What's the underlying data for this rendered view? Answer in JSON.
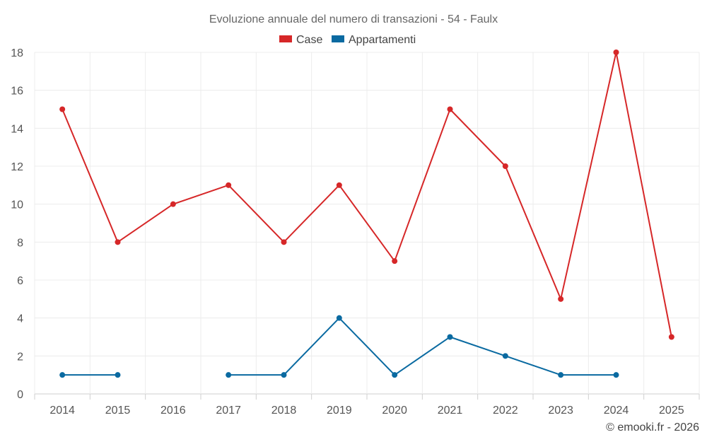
{
  "chart_data": {
    "type": "line",
    "title": "Evoluzione annuale del numero di transazioni - 54 - Faulx",
    "categories": [
      "2014",
      "2015",
      "2016",
      "2017",
      "2018",
      "2019",
      "2020",
      "2021",
      "2022",
      "2023",
      "2024",
      "2025"
    ],
    "ylim": [
      0,
      18
    ],
    "yticks": [
      0,
      2,
      4,
      6,
      8,
      10,
      12,
      14,
      16,
      18
    ],
    "grid": true,
    "legend_position": "top-center",
    "series": [
      {
        "name": "Case",
        "color": "#d62728",
        "values": [
          15,
          8,
          10,
          11,
          8,
          11,
          7,
          15,
          12,
          5,
          18,
          3
        ]
      },
      {
        "name": "Appartamenti",
        "color": "#0a6aa1",
        "values": [
          1,
          1,
          null,
          1,
          1,
          4,
          1,
          3,
          2,
          1,
          1,
          null
        ]
      }
    ]
  },
  "credit": "© emooki.fr - 2026"
}
